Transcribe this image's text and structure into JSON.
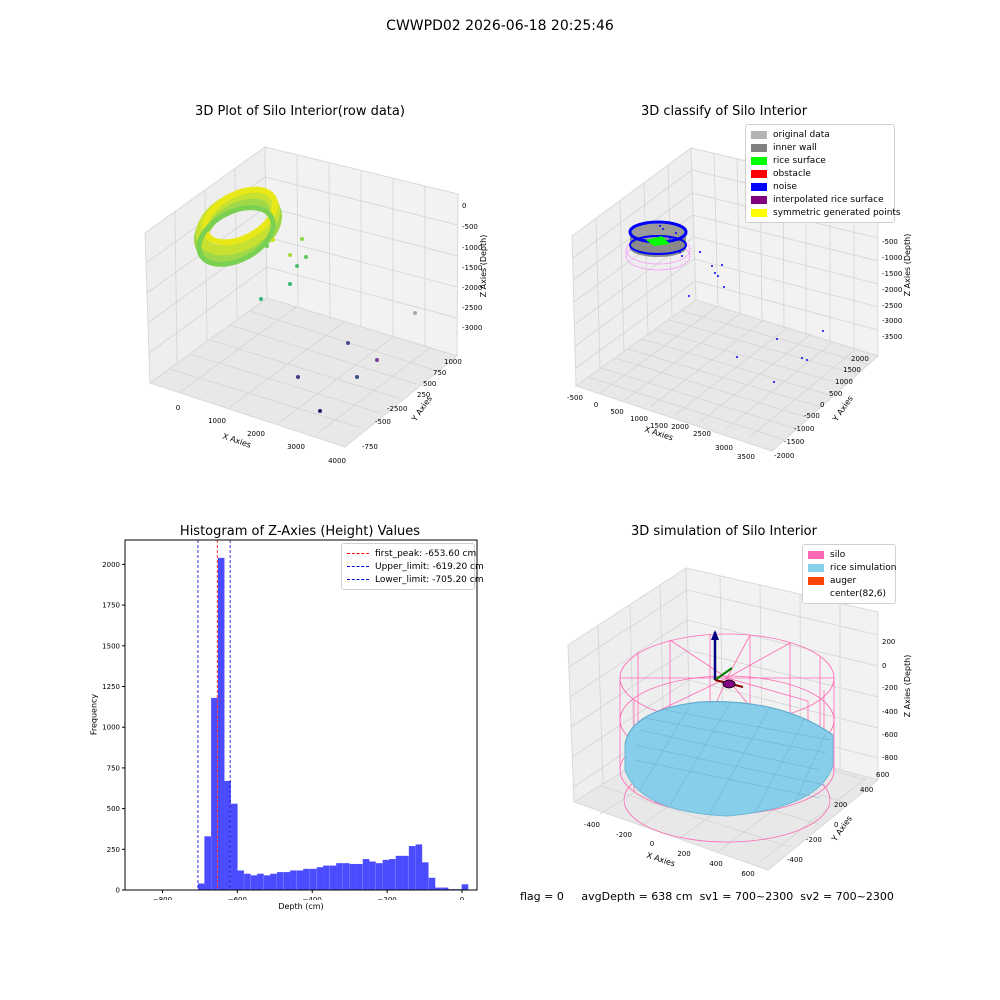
{
  "suptitle": "CWWPD02 2026-06-18 20:25:46",
  "footer": {
    "flag": "flag = 0",
    "avgDepth": "avgDepth = 638 cm",
    "sv1": "sv1 = 700~2300",
    "sv2": "sv2 = 700~2300"
  },
  "chart_data": [
    {
      "type": "scatter",
      "projection": "3d",
      "title": "3D Plot of Silo Interior(row data)",
      "xlabel": "X Axies",
      "ylabel": "Y Axies",
      "zlabel": "Z Axies (Depth)",
      "xticks": [
        "0",
        "1000",
        "2000",
        "3000",
        "4000"
      ],
      "yticks": [
        "-750",
        "-500",
        "-250",
        "0",
        "250",
        "500",
        "750",
        "1000"
      ],
      "zticks": [
        "0",
        "-500",
        "-1000",
        "-1500",
        "-2000",
        "-2500",
        "-3000"
      ],
      "xlim": [
        -500,
        4000
      ],
      "ylim": [
        -900,
        1100
      ],
      "zlim": [
        -3300,
        0
      ],
      "colormap": "viridis",
      "grid": true,
      "description_points": "dense ring of points near x≈0 (top), scattered outliers toward x≈3500"
    },
    {
      "type": "scatter",
      "projection": "3d",
      "title": "3D classify of Silo Interior",
      "xlabel": "X Axies",
      "ylabel": "Y Axies",
      "zlabel": "Z Axies (Depth)",
      "xticks": [
        "-500",
        "0",
        "500",
        "1000",
        "1500",
        "2000",
        "2500",
        "3000",
        "3500"
      ],
      "yticks": [
        "-2000",
        "-1500",
        "-1000",
        "-500",
        "0",
        "500",
        "1000",
        "1500",
        "2000"
      ],
      "zticks": [
        "0",
        "-500",
        "-1000",
        "-1500",
        "-2000",
        "-2500",
        "-3000",
        "-3500"
      ],
      "legend_position": "top-right",
      "grid": true,
      "legend": [
        {
          "label": "original data",
          "color": "#b4b4b4"
        },
        {
          "label": "inner wall",
          "color": "#808080"
        },
        {
          "label": "rice surface",
          "color": "#00ff00"
        },
        {
          "label": "obstacle",
          "color": "#ff0000"
        },
        {
          "label": "noise",
          "color": "#0000ff"
        },
        {
          "label": "interpolated rice surface",
          "color": "#800080"
        },
        {
          "label": "symmetric generated points",
          "color": "#ffff00"
        }
      ]
    },
    {
      "type": "bar",
      "title": "Histogram of Z-Axies (Height) Values",
      "xlabel": "Depth (cm)",
      "ylabel": "Frequency",
      "xlim": [
        -900,
        40
      ],
      "ylim": [
        0,
        2150
      ],
      "xticks": [
        -800,
        -600,
        -400,
        -200,
        0
      ],
      "yticks": [
        0,
        250,
        500,
        750,
        1000,
        1250,
        1500,
        1750,
        2000
      ],
      "bar_color": "#4c4cff",
      "bin_width": 17.6,
      "bins": [
        {
          "x": -705,
          "v": 40
        },
        {
          "x": -688,
          "v": 330
        },
        {
          "x": -670,
          "v": 1180
        },
        {
          "x": -652,
          "v": 2040
        },
        {
          "x": -635,
          "v": 670
        },
        {
          "x": -617,
          "v": 530
        },
        {
          "x": -600,
          "v": 120
        },
        {
          "x": -582,
          "v": 100
        },
        {
          "x": -564,
          "v": 90
        },
        {
          "x": -547,
          "v": 100
        },
        {
          "x": -529,
          "v": 90
        },
        {
          "x": -512,
          "v": 100
        },
        {
          "x": -494,
          "v": 110
        },
        {
          "x": -476,
          "v": 110
        },
        {
          "x": -459,
          "v": 120
        },
        {
          "x": -441,
          "v": 120
        },
        {
          "x": -424,
          "v": 130
        },
        {
          "x": -406,
          "v": 130
        },
        {
          "x": -388,
          "v": 140
        },
        {
          "x": -371,
          "v": 150
        },
        {
          "x": -353,
          "v": 150
        },
        {
          "x": -336,
          "v": 165
        },
        {
          "x": -318,
          "v": 165
        },
        {
          "x": -300,
          "v": 160
        },
        {
          "x": -283,
          "v": 160
        },
        {
          "x": -265,
          "v": 190
        },
        {
          "x": -248,
          "v": 175
        },
        {
          "x": -230,
          "v": 165
        },
        {
          "x": -212,
          "v": 185
        },
        {
          "x": -195,
          "v": 190
        },
        {
          "x": -177,
          "v": 210
        },
        {
          "x": -160,
          "v": 210
        },
        {
          "x": -142,
          "v": 270
        },
        {
          "x": -124,
          "v": 280
        },
        {
          "x": -107,
          "v": 170
        },
        {
          "x": -89,
          "v": 75
        },
        {
          "x": -72,
          "v": 15
        },
        {
          "x": -54,
          "v": 15
        },
        {
          "x": -36,
          "v": 5
        },
        {
          "x": -19,
          "v": 5
        },
        {
          "x": -1,
          "v": 35
        }
      ],
      "lines": [
        {
          "label": "first_peak: -653.60 cm",
          "x": -653.6,
          "color": "#ff0000"
        },
        {
          "label": "Upper_limit: -619.20 cm",
          "x": -619.2,
          "color": "#0000cc"
        },
        {
          "label": "Lower_limit: -705.20 cm",
          "x": -705.2,
          "color": "#0000cc"
        }
      ],
      "legend_position": "top-right"
    },
    {
      "type": "scatter",
      "projection": "3d",
      "title": "3D simulation of Silo Interior",
      "xlabel": "X Axies",
      "ylabel": "Y Axies",
      "zlabel": "Z Axies (Depth)",
      "xticks": [
        "-400",
        "-200",
        "0",
        "200",
        "400",
        "600"
      ],
      "yticks": [
        "-400",
        "-200",
        "0",
        "200",
        "400",
        "600"
      ],
      "zticks": [
        "200",
        "0",
        "-200",
        "-400",
        "-600",
        "-800"
      ],
      "legend_position": "top-right",
      "grid": true,
      "legend": [
        {
          "label": "silo",
          "color": "#ff69b4"
        },
        {
          "label": "rice simulation",
          "color": "#87ceeb"
        },
        {
          "label": "auger",
          "color": "#ff4500"
        },
        {
          "label": "center(82,6)",
          "color": ""
        }
      ]
    }
  ]
}
